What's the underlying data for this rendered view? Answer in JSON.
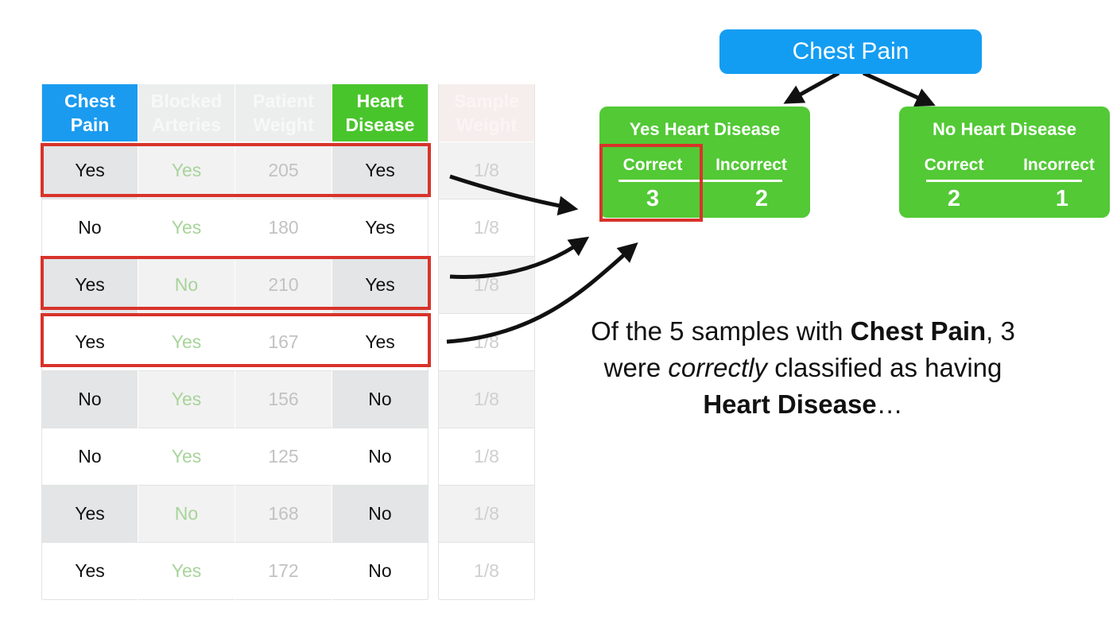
{
  "table": {
    "headers": {
      "chest_pain": "Chest\nPain",
      "blocked_arteries": "Blocked\nArteries",
      "patient_weight": "Patient\nWeight",
      "heart_disease": "Heart\nDisease",
      "sample_weight": "Sample\nWeight"
    },
    "rows": [
      {
        "chest_pain": "Yes",
        "blocked_arteries": "Yes",
        "patient_weight": "205",
        "heart_disease": "Yes",
        "sample_weight": "1/8"
      },
      {
        "chest_pain": "No",
        "blocked_arteries": "Yes",
        "patient_weight": "180",
        "heart_disease": "Yes",
        "sample_weight": "1/8"
      },
      {
        "chest_pain": "Yes",
        "blocked_arteries": "No",
        "patient_weight": "210",
        "heart_disease": "Yes",
        "sample_weight": "1/8"
      },
      {
        "chest_pain": "Yes",
        "blocked_arteries": "Yes",
        "patient_weight": "167",
        "heart_disease": "Yes",
        "sample_weight": "1/8"
      },
      {
        "chest_pain": "No",
        "blocked_arteries": "Yes",
        "patient_weight": "156",
        "heart_disease": "No",
        "sample_weight": "1/8"
      },
      {
        "chest_pain": "No",
        "blocked_arteries": "Yes",
        "patient_weight": "125",
        "heart_disease": "No",
        "sample_weight": "1/8"
      },
      {
        "chest_pain": "Yes",
        "blocked_arteries": "No",
        "patient_weight": "168",
        "heart_disease": "No",
        "sample_weight": "1/8"
      },
      {
        "chest_pain": "Yes",
        "blocked_arteries": "Yes",
        "patient_weight": "172",
        "heart_disease": "No",
        "sample_weight": "1/8"
      }
    ],
    "highlighted_rows": [
      1,
      3,
      4
    ]
  },
  "tree": {
    "root": "Chest Pain",
    "left": {
      "title": "Yes Heart Disease",
      "correct_label": "Correct",
      "incorrect_label": "Incorrect",
      "correct": "3",
      "incorrect": "2"
    },
    "right": {
      "title": "No Heart Disease",
      "correct_label": "Correct",
      "incorrect_label": "Incorrect",
      "correct": "2",
      "incorrect": "1"
    }
  },
  "caption": {
    "p1": "Of the 5 samples with ",
    "b1": "Chest Pain",
    "p2": ", 3 were ",
    "i1": "correctly",
    "p3": " classified as having ",
    "b2": "Heart Disease",
    "p4": "…"
  },
  "colors": {
    "header_blue": "#1a9bf0",
    "header_green": "#49c52c",
    "leaf_green": "#52c935",
    "highlight_red": "#d8332a"
  }
}
